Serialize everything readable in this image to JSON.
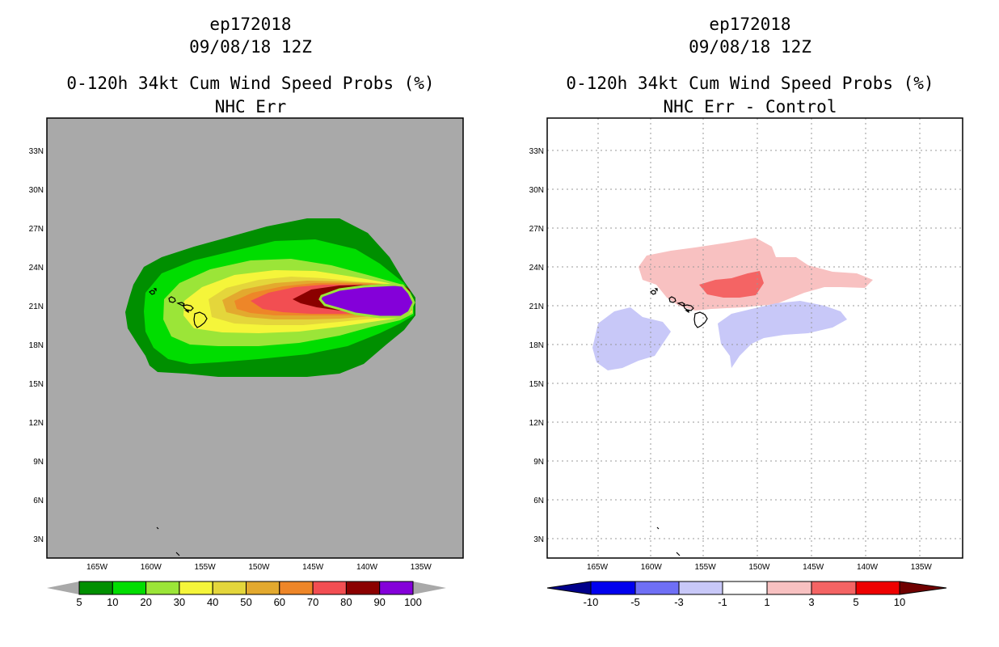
{
  "left_panel": {
    "storm_id": "ep172018",
    "datetime": "09/08/18 12Z",
    "product": "0-120h 34kt Cum Wind Speed Probs (%)",
    "subtitle": "NHC Err",
    "background_color": "#a9a9a9",
    "colorbar": {
      "labels": [
        "5",
        "10",
        "20",
        "30",
        "40",
        "50",
        "60",
        "70",
        "80",
        "90",
        "100"
      ],
      "colors": [
        "#008f00",
        "#00dd00",
        "#9be538",
        "#f5f53a",
        "#e4d63b",
        "#e3a92e",
        "#ee8628",
        "#f24e52",
        "#8b0000",
        "#8400d9"
      ],
      "arrow_color": "#a9a9a9"
    }
  },
  "right_panel": {
    "storm_id": "ep172018",
    "datetime": "09/08/18 12Z",
    "product": "0-120h 34kt Cum Wind Speed Probs (%)",
    "subtitle": "NHC Err - Control",
    "background_color": "#ffffff",
    "colorbar": {
      "labels": [
        "-10",
        "-5",
        "-3",
        "-1",
        "1",
        "3",
        "5",
        "10"
      ],
      "colors": [
        "#0000ee",
        "#6f6ff5",
        "#c8c8f8",
        "#ffffff",
        "#f8c1c1",
        "#f46464",
        "#ee0000"
      ],
      "low_arrow_color": "#00008b",
      "high_arrow_color": "#700000"
    }
  },
  "map_axes": {
    "lat_labels": [
      "33N",
      "30N",
      "27N",
      "24N",
      "21N",
      "18N",
      "15N",
      "12N",
      "9N",
      "6N",
      "3N"
    ],
    "lon_labels": [
      "165W",
      "160W",
      "155W",
      "150W",
      "145W",
      "140W",
      "135W"
    ]
  }
}
